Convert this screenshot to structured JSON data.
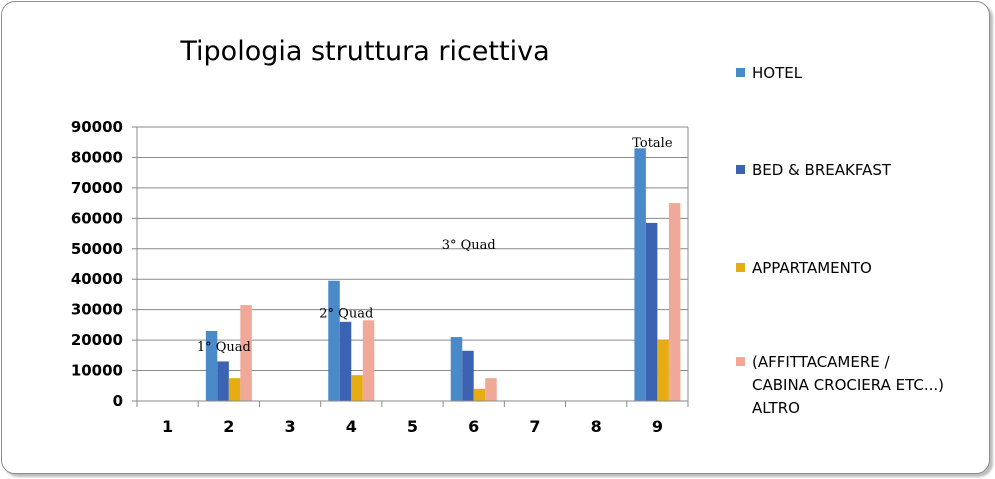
{
  "chart_data": {
    "type": "bar",
    "title": "Tipologia struttura ricettiva",
    "categories": [
      "1",
      "2",
      "3",
      "4",
      "5",
      "6",
      "7",
      "8",
      "9"
    ],
    "ylim": [
      0,
      90000
    ],
    "yticks": [
      0,
      10000,
      20000,
      30000,
      40000,
      50000,
      60000,
      70000,
      80000,
      90000
    ],
    "grid": true,
    "legend_position": "right",
    "series": [
      {
        "name": "HOTEL",
        "color": "#4a8ac9",
        "values": [
          0,
          23000,
          0,
          39500,
          0,
          21000,
          0,
          0,
          83000
        ]
      },
      {
        "name": "BED & BREAKFAST",
        "color": "#3c62b4",
        "values": [
          0,
          13000,
          0,
          26000,
          0,
          16500,
          0,
          0,
          58500
        ]
      },
      {
        "name": "APPARTAMENTO",
        "color": "#e6ad12",
        "values": [
          0,
          7500,
          0,
          8500,
          0,
          4000,
          0,
          0,
          20000
        ]
      },
      {
        "name": "(AFFITTACAMERE / CABINA CROCIERA ETC...) ALTRO",
        "color": "#f0a898",
        "values": [
          0,
          31500,
          0,
          26500,
          0,
          7500,
          0,
          0,
          65000
        ]
      }
    ],
    "annotations": [
      {
        "text": "1° Quad",
        "category": "2",
        "y": 18000
      },
      {
        "text": "2° Quad",
        "category": "4",
        "y": 29000
      },
      {
        "text": "3° Quad",
        "category": "6",
        "y": 51500
      },
      {
        "text": "Totale",
        "category": "9",
        "y": 85000
      }
    ]
  }
}
